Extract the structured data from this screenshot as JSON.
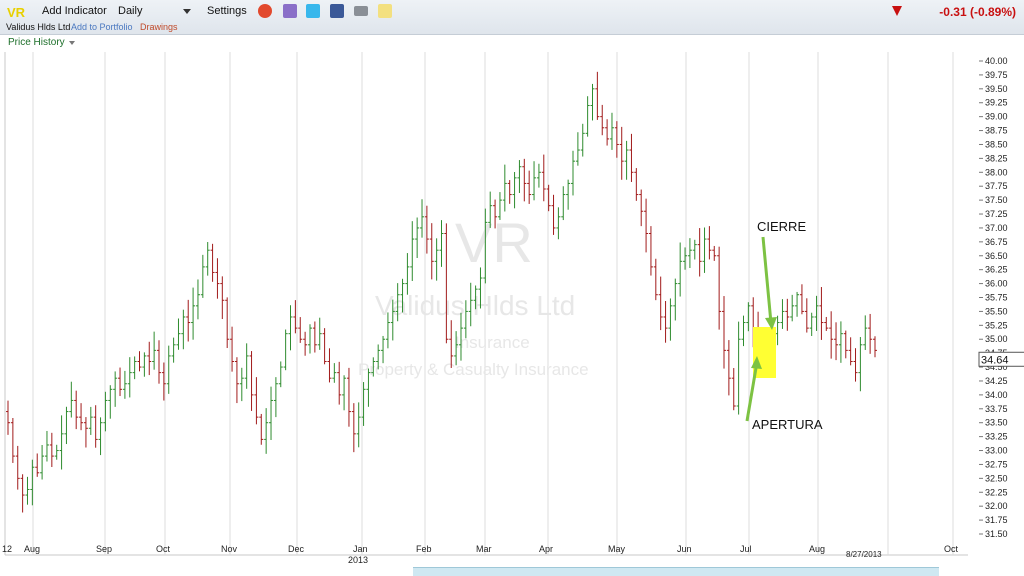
{
  "toolbar": {
    "ticker": "VR",
    "add_indicator": "Add Indicator",
    "period": "Daily",
    "settings": "Settings",
    "company": "Validus Hlds Ltd",
    "add_portfolio": "Add to Portfolio",
    "drawings": "Drawings",
    "change": "-0.31 (-0.89%)",
    "icons": [
      "alarm-clock-icon",
      "book-icon",
      "twitter-icon",
      "facebook-icon",
      "camera-icon",
      "note-icon"
    ]
  },
  "price_history_label": "Price History",
  "colors": {
    "up": "#2e8b2e",
    "down": "#a11a1a",
    "arrow": "#7dc243",
    "highlight": "#ffff33"
  },
  "chart_data": {
    "type": "bar",
    "style": "ohlc",
    "watermark": [
      "VR",
      "Validus Hlds Ltd",
      "Insurance",
      "Property & Casualty Insurance"
    ],
    "ylim": [
      31.5,
      40.0
    ],
    "ytick_step": 0.25,
    "month_labels": [
      "12",
      "Aug",
      "Sep",
      "Oct",
      "Nov",
      "Dec",
      "Jan",
      "Feb",
      "Mar",
      "Apr",
      "May",
      "Jun",
      "Jul",
      "Aug",
      "Oct"
    ],
    "year_label": "2013",
    "date_label": "8/27/2013",
    "last_price": "34.64",
    "annotations": [
      "CIERRE",
      "APERTURA"
    ],
    "grid": "vertical",
    "series": [
      {
        "values": [
          33.5,
          32.9,
          32.5,
          32.2,
          32.3,
          32.7,
          32.6,
          32.9,
          33.1,
          32.9,
          33.0,
          33.3,
          33.7,
          33.9,
          33.6,
          33.5,
          33.4,
          33.6,
          33.2,
          33.5,
          33.9,
          34.1,
          34.3,
          34.1,
          34.2,
          34.4,
          34.6,
          34.5,
          34.7,
          34.6,
          34.8,
          34.4,
          34.2,
          34.7,
          34.9,
          35.1,
          35.4,
          35.3,
          35.6,
          35.8,
          36.3,
          36.6,
          36.2,
          36.0,
          35.7,
          35.0,
          34.6,
          34.2,
          34.3,
          34.7,
          34.0,
          33.6,
          33.2,
          33.5,
          33.9,
          34.2,
          34.5,
          35.1,
          35.4,
          35.2,
          35.0,
          34.9,
          35.2,
          34.9,
          35.1,
          34.6,
          34.3,
          34.4,
          34.0,
          34.3,
          33.7,
          33.3,
          33.6,
          34.1,
          34.4,
          34.6,
          34.8,
          35.0,
          35.3,
          35.5,
          35.8,
          36.0,
          36.3,
          36.8,
          37.0,
          37.2,
          36.8,
          36.4,
          36.6,
          36.9,
          35.0,
          34.7,
          34.9,
          35.2,
          35.5,
          35.7,
          35.9,
          36.1,
          37.1,
          37.4,
          37.2,
          37.5,
          37.8,
          37.6,
          37.9,
          38.1,
          37.8,
          37.6,
          37.9,
          38.0,
          37.7,
          37.4,
          37.0,
          37.2,
          37.6,
          37.8,
          38.2,
          38.4,
          38.7,
          39.2,
          39.5,
          39.0,
          38.8,
          38.6,
          38.8,
          38.5,
          38.2,
          38.4,
          38.0,
          37.6,
          37.3,
          36.9,
          36.3,
          35.8,
          35.4,
          35.2,
          35.6,
          36.0,
          36.4,
          36.5,
          36.6,
          36.7,
          36.4,
          36.8,
          36.6,
          36.5,
          35.5,
          34.8,
          34.3,
          33.8,
          35.0,
          35.3,
          35.6,
          35.2,
          34.9,
          34.8,
          34.9,
          35.1,
          35.3,
          35.5,
          35.4,
          35.6,
          35.8,
          35.5,
          35.2,
          35.4,
          35.6,
          35.3,
          35.2,
          35.0,
          34.9,
          35.1,
          34.8,
          34.6,
          34.4,
          34.9,
          35.2,
          35.0,
          34.8
        ]
      }
    ]
  }
}
